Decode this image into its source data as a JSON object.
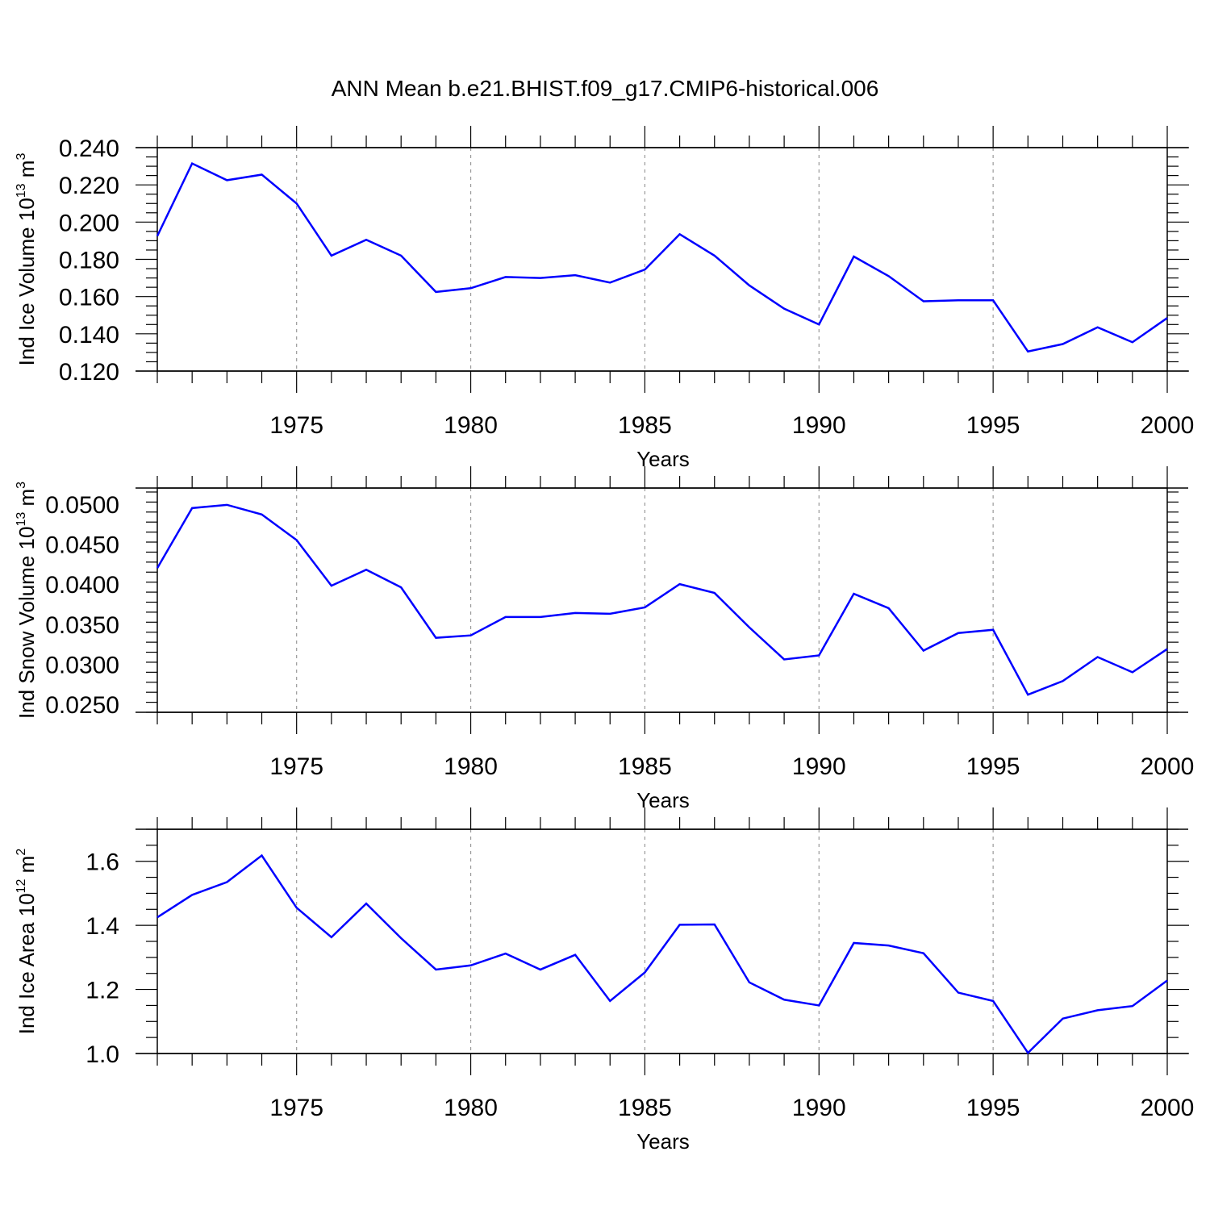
{
  "title": "ANN Mean b.e21.BHIST.f09_g17.CMIP6-historical.006",
  "line_color": "#0000ff",
  "grid_color": "#999999",
  "chart_data": [
    {
      "type": "line",
      "ylabel": {
        "text": "Ind Ice Volume 10",
        "exp": "13",
        "unit": " m",
        "unit_exp": "3"
      },
      "xlabel": "Years",
      "xlim": [
        1971,
        2000
      ],
      "ylim": [
        0.12,
        0.24
      ],
      "yticks": [
        0.12,
        0.14,
        0.16,
        0.18,
        0.2,
        0.22,
        0.24
      ],
      "ytick_labels": [
        "0.120",
        "0.140",
        "0.160",
        "0.180",
        "0.200",
        "0.220",
        "0.240"
      ],
      "xticks": [
        1975,
        1980,
        1985,
        1990,
        1995,
        2000
      ],
      "xtick_labels": [
        "1975",
        "1980",
        "1985",
        "1990",
        "1995",
        "2000"
      ],
      "grid": "vertical-dashed",
      "x": [
        1971,
        1972,
        1973,
        1974,
        1975,
        1976,
        1977,
        1978,
        1979,
        1980,
        1981,
        1982,
        1983,
        1984,
        1985,
        1986,
        1987,
        1988,
        1989,
        1990,
        1991,
        1992,
        1993,
        1994,
        1995,
        1996,
        1997,
        1998,
        1999,
        2000
      ],
      "series": [
        {
          "values": [
            0.1925,
            0.2315,
            0.2225,
            0.2255,
            0.21,
            0.182,
            0.1905,
            0.182,
            0.1625,
            0.1645,
            0.1705,
            0.17,
            0.1715,
            0.1675,
            0.1745,
            0.1935,
            0.182,
            0.166,
            0.1535,
            0.145,
            0.1815,
            0.171,
            0.1575,
            0.158,
            0.158,
            0.1305,
            0.1345,
            0.1435,
            0.1355,
            0.1485
          ]
        }
      ]
    },
    {
      "type": "line",
      "ylabel": {
        "text": "Ind Snow Volume 10",
        "exp": "13",
        "unit": " m",
        "unit_exp": "3"
      },
      "xlabel": "Years",
      "xlim": [
        1971,
        2000
      ],
      "ylim": [
        0.024,
        0.052
      ],
      "yticks": [
        0.025,
        0.03,
        0.035,
        0.04,
        0.045,
        0.05
      ],
      "ytick_labels": [
        "0.0250",
        "0.0300",
        "0.0350",
        "0.0400",
        "0.0450",
        "0.0500"
      ],
      "xticks": [
        1975,
        1980,
        1985,
        1990,
        1995,
        2000
      ],
      "xtick_labels": [
        "1975",
        "1980",
        "1985",
        "1990",
        "1995",
        "2000"
      ],
      "grid": "vertical-dashed",
      "x": [
        1971,
        1972,
        1973,
        1974,
        1975,
        1976,
        1977,
        1978,
        1979,
        1980,
        1981,
        1982,
        1983,
        1984,
        1985,
        1986,
        1987,
        1988,
        1989,
        1990,
        1991,
        1992,
        1993,
        1994,
        1995,
        1996,
        1997,
        1998,
        1999,
        2000
      ],
      "series": [
        {
          "values": [
            0.042,
            0.0495,
            0.0499,
            0.0487,
            0.0455,
            0.0398,
            0.0418,
            0.0396,
            0.0333,
            0.0336,
            0.0359,
            0.0359,
            0.0364,
            0.0363,
            0.0371,
            0.04,
            0.0389,
            0.0346,
            0.0306,
            0.0311,
            0.0388,
            0.037,
            0.0317,
            0.0339,
            0.0343,
            0.0262,
            0.0279,
            0.0309,
            0.029,
            0.0319
          ]
        }
      ]
    },
    {
      "type": "line",
      "ylabel": {
        "text": "Ind Ice Area 10",
        "exp": "12",
        "unit": " m",
        "unit_exp": "2"
      },
      "xlabel": "Years",
      "xlim": [
        1971,
        2000
      ],
      "ylim": [
        1.0,
        1.7
      ],
      "yticks": [
        1.0,
        1.2,
        1.4,
        1.6
      ],
      "ytick_labels": [
        "1.0",
        "1.2",
        "1.4",
        "1.6"
      ],
      "xticks": [
        1975,
        1980,
        1985,
        1990,
        1995,
        2000
      ],
      "xtick_labels": [
        "1975",
        "1980",
        "1985",
        "1990",
        "1995",
        "2000"
      ],
      "grid": "vertical-dashed",
      "x": [
        1971,
        1972,
        1973,
        1974,
        1975,
        1976,
        1977,
        1978,
        1979,
        1980,
        1981,
        1982,
        1983,
        1984,
        1985,
        1986,
        1987,
        1988,
        1989,
        1990,
        1991,
        1992,
        1993,
        1994,
        1995,
        1996,
        1997,
        1998,
        1999,
        2000
      ],
      "series": [
        {
          "values": [
            1.425,
            1.495,
            1.535,
            1.618,
            1.455,
            1.363,
            1.468,
            1.36,
            1.262,
            1.275,
            1.312,
            1.262,
            1.308,
            1.164,
            1.253,
            1.402,
            1.403,
            1.222,
            1.168,
            1.15,
            1.345,
            1.337,
            1.313,
            1.19,
            1.164,
            1.002,
            1.109,
            1.135,
            1.148,
            1.228
          ]
        }
      ]
    }
  ]
}
